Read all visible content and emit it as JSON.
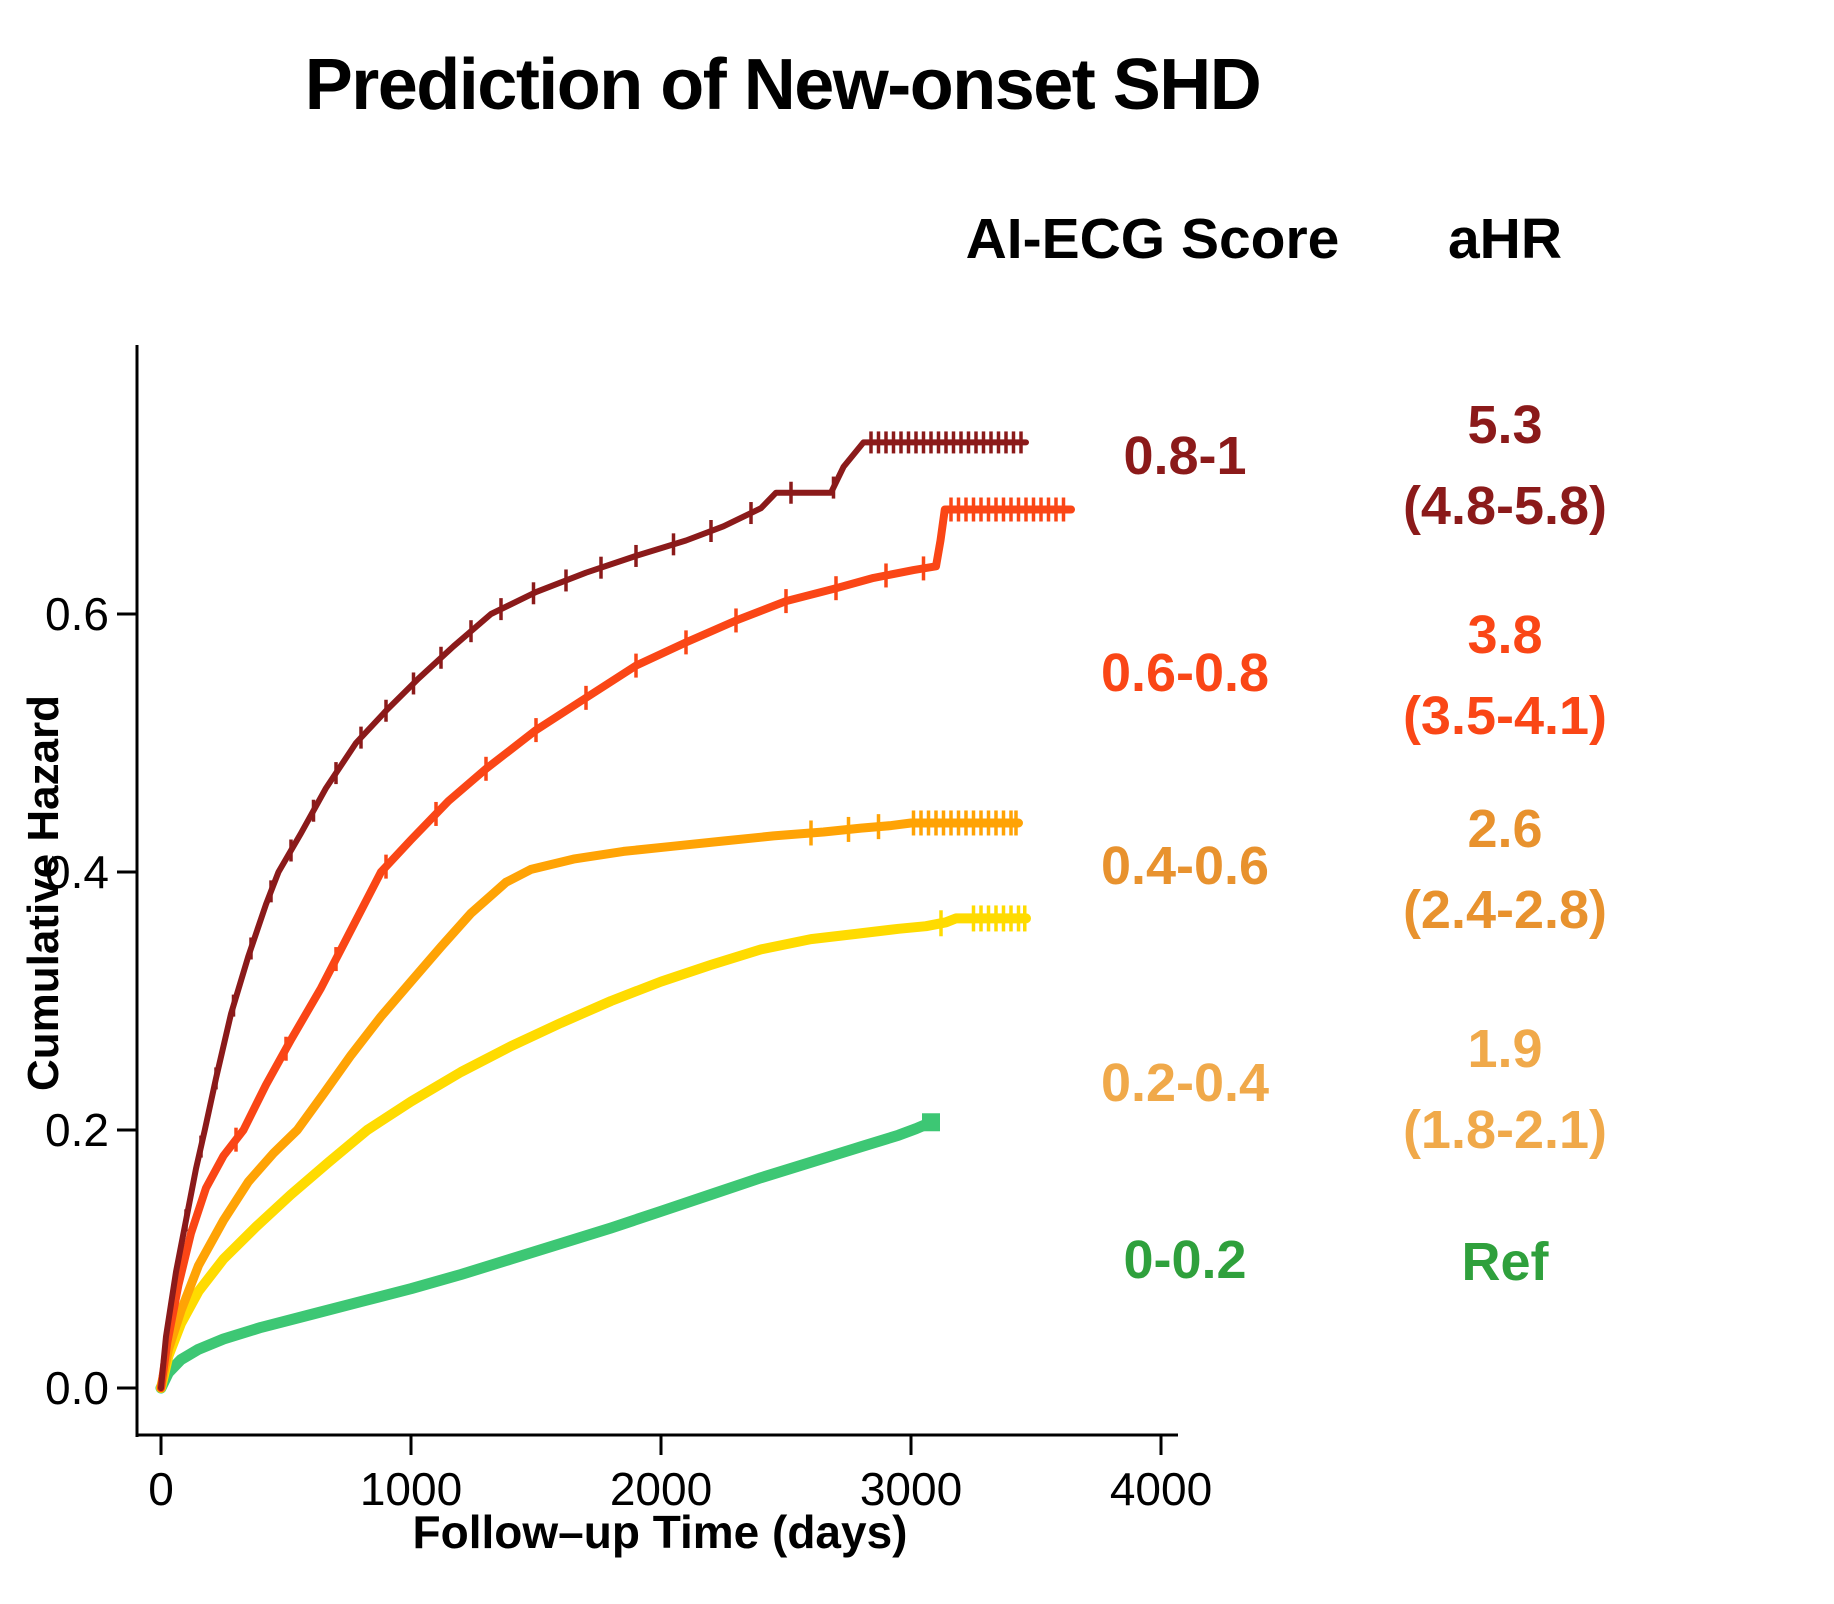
{
  "title": "Prediction of New-onset SHD",
  "legend": {
    "col1_header": "AI-ECG Score",
    "col2_header": "aHR",
    "rows": [
      {
        "score": "0.8-1",
        "ahr": "5.3",
        "ci": "(4.8-5.8)",
        "color": "#8B1A1A"
      },
      {
        "score": "0.6-0.8",
        "ahr": "3.8",
        "ci": "(3.5-4.1)",
        "color": "#FA4616"
      },
      {
        "score": "0.4-0.6",
        "ahr": "2.6",
        "ci": "(2.4-2.8)",
        "color": "#E8922E"
      },
      {
        "score": "0.2-0.4",
        "ahr": "1.9",
        "ci": "(1.8-2.1)",
        "color": "#F0A94A"
      },
      {
        "score": "0-0.2",
        "ahr": "Ref",
        "ci": "",
        "color": "#2FA03C"
      }
    ]
  },
  "chart_data": {
    "type": "line",
    "subtype": "cumulative-hazard-curves",
    "title": "Prediction of New-onset SHD",
    "xlabel": "Follow–up Time (days)",
    "ylabel": "Cumulative Hazard",
    "xlim": [
      0,
      4200
    ],
    "ylim": [
      0,
      0.78
    ],
    "x_ticks": [
      0,
      1000,
      2000,
      3000,
      4000
    ],
    "y_ticks": [
      "0.0",
      "0.2",
      "0.4",
      "0.6"
    ],
    "grid": false,
    "legend_position": "right",
    "series": [
      {
        "name": "0-0.2",
        "ahr_label": "Ref",
        "color": "#3DC774",
        "width": 11,
        "end_marker": "square",
        "points": [
          [
            0,
            0
          ],
          [
            30,
            0.012
          ],
          [
            80,
            0.022
          ],
          [
            150,
            0.03
          ],
          [
            250,
            0.038
          ],
          [
            400,
            0.047
          ],
          [
            600,
            0.057
          ],
          [
            800,
            0.067
          ],
          [
            1000,
            0.077
          ],
          [
            1200,
            0.088
          ],
          [
            1400,
            0.1
          ],
          [
            1600,
            0.112
          ],
          [
            1800,
            0.124
          ],
          [
            2000,
            0.137
          ],
          [
            2200,
            0.15
          ],
          [
            2400,
            0.163
          ],
          [
            2600,
            0.175
          ],
          [
            2800,
            0.187
          ],
          [
            2950,
            0.196
          ],
          [
            3020,
            0.201
          ],
          [
            3080,
            0.206
          ]
        ],
        "censors": []
      },
      {
        "name": "0.2-0.4",
        "ahr_label": "1.9 (1.8-2.1)",
        "color": "#FFDB00",
        "width": 10,
        "end_marker": "none",
        "points": [
          [
            0,
            0
          ],
          [
            30,
            0.025
          ],
          [
            80,
            0.05
          ],
          [
            150,
            0.075
          ],
          [
            250,
            0.1
          ],
          [
            380,
            0.125
          ],
          [
            520,
            0.15
          ],
          [
            670,
            0.175
          ],
          [
            825,
            0.2
          ],
          [
            1000,
            0.222
          ],
          [
            1200,
            0.245
          ],
          [
            1400,
            0.265
          ],
          [
            1600,
            0.283
          ],
          [
            1800,
            0.3
          ],
          [
            2000,
            0.315
          ],
          [
            2200,
            0.328
          ],
          [
            2400,
            0.34
          ],
          [
            2600,
            0.348
          ],
          [
            2780,
            0.352
          ],
          [
            2950,
            0.356
          ],
          [
            3060,
            0.358
          ],
          [
            3140,
            0.361
          ],
          [
            3180,
            0.364
          ],
          [
            3460,
            0.364
          ]
        ],
        "censors": [
          3120,
          3250,
          3280,
          3310,
          3340,
          3370,
          3400,
          3430,
          3455
        ]
      },
      {
        "name": "0.4-0.6",
        "ahr_label": "2.6 (2.4-2.8)",
        "color": "#FFA305",
        "width": 9,
        "end_marker": "none",
        "points": [
          [
            0,
            0
          ],
          [
            30,
            0.03
          ],
          [
            80,
            0.06
          ],
          [
            150,
            0.095
          ],
          [
            250,
            0.13
          ],
          [
            350,
            0.16
          ],
          [
            450,
            0.182
          ],
          [
            545,
            0.2
          ],
          [
            650,
            0.228
          ],
          [
            760,
            0.258
          ],
          [
            880,
            0.288
          ],
          [
            1000,
            0.315
          ],
          [
            1120,
            0.342
          ],
          [
            1240,
            0.368
          ],
          [
            1380,
            0.392
          ],
          [
            1480,
            0.402
          ],
          [
            1650,
            0.41
          ],
          [
            1850,
            0.416
          ],
          [
            2050,
            0.42
          ],
          [
            2250,
            0.424
          ],
          [
            2450,
            0.428
          ],
          [
            2650,
            0.431
          ],
          [
            2800,
            0.434
          ],
          [
            2920,
            0.436
          ],
          [
            3000,
            0.438
          ],
          [
            3430,
            0.438
          ]
        ],
        "censors": [
          2600,
          2750,
          2870,
          3010,
          3040,
          3070,
          3100,
          3130,
          3160,
          3190,
          3220,
          3250,
          3280,
          3310,
          3340,
          3370,
          3400,
          3420
        ]
      },
      {
        "name": "0.6-0.8",
        "ahr_label": "3.8 (3.5-4.1)",
        "color": "#FA4616",
        "width": 8,
        "end_marker": "none",
        "points": [
          [
            0,
            0
          ],
          [
            25,
            0.035
          ],
          [
            70,
            0.08
          ],
          [
            120,
            0.12
          ],
          [
            180,
            0.155
          ],
          [
            250,
            0.18
          ],
          [
            330,
            0.2
          ],
          [
            420,
            0.235
          ],
          [
            520,
            0.27
          ],
          [
            640,
            0.31
          ],
          [
            760,
            0.355
          ],
          [
            880,
            0.4
          ],
          [
            1000,
            0.425
          ],
          [
            1150,
            0.455
          ],
          [
            1300,
            0.48
          ],
          [
            1500,
            0.51
          ],
          [
            1700,
            0.535
          ],
          [
            1900,
            0.56
          ],
          [
            2100,
            0.578
          ],
          [
            2300,
            0.595
          ],
          [
            2500,
            0.61
          ],
          [
            2700,
            0.62
          ],
          [
            2850,
            0.628
          ],
          [
            3010,
            0.634
          ],
          [
            3100,
            0.637
          ],
          [
            3118,
            0.657
          ],
          [
            3135,
            0.681
          ],
          [
            3640,
            0.681
          ]
        ],
        "censors": [
          300,
          500,
          700,
          900,
          1100,
          1300,
          1500,
          1700,
          1900,
          2100,
          2300,
          2500,
          2700,
          2900,
          3050,
          3160,
          3190,
          3220,
          3250,
          3280,
          3310,
          3340,
          3370,
          3400,
          3430,
          3460,
          3490,
          3520,
          3550,
          3580,
          3610
        ]
      },
      {
        "name": "0.8-1",
        "ahr_label": "5.3 (4.8-5.8)",
        "color": "#8B1A1A",
        "width": 6,
        "end_marker": "none",
        "points": [
          [
            0,
            0
          ],
          [
            20,
            0.04
          ],
          [
            60,
            0.09
          ],
          [
            100,
            0.13
          ],
          [
            140,
            0.17
          ],
          [
            175,
            0.2
          ],
          [
            220,
            0.24
          ],
          [
            280,
            0.29
          ],
          [
            350,
            0.335
          ],
          [
            420,
            0.375
          ],
          [
            470,
            0.4
          ],
          [
            560,
            0.43
          ],
          [
            660,
            0.465
          ],
          [
            780,
            0.5
          ],
          [
            900,
            0.525
          ],
          [
            1030,
            0.55
          ],
          [
            1170,
            0.575
          ],
          [
            1320,
            0.6
          ],
          [
            1500,
            0.617
          ],
          [
            1700,
            0.632
          ],
          [
            1900,
            0.645
          ],
          [
            2100,
            0.657
          ],
          [
            2250,
            0.668
          ],
          [
            2400,
            0.682
          ],
          [
            2460,
            0.694
          ],
          [
            2680,
            0.694
          ],
          [
            2730,
            0.714
          ],
          [
            2810,
            0.733
          ],
          [
            3460,
            0.733
          ]
        ],
        "censors": [
          100,
          160,
          220,
          290,
          360,
          440,
          520,
          610,
          700,
          800,
          900,
          1010,
          1120,
          1240,
          1360,
          1490,
          1620,
          1760,
          1900,
          2050,
          2200,
          2360,
          2520,
          2690,
          2840,
          2870,
          2900,
          2930,
          2960,
          2990,
          3020,
          3050,
          3080,
          3110,
          3140,
          3170,
          3200,
          3230,
          3260,
          3290,
          3320,
          3350,
          3380,
          3410,
          3440
        ]
      }
    ]
  }
}
